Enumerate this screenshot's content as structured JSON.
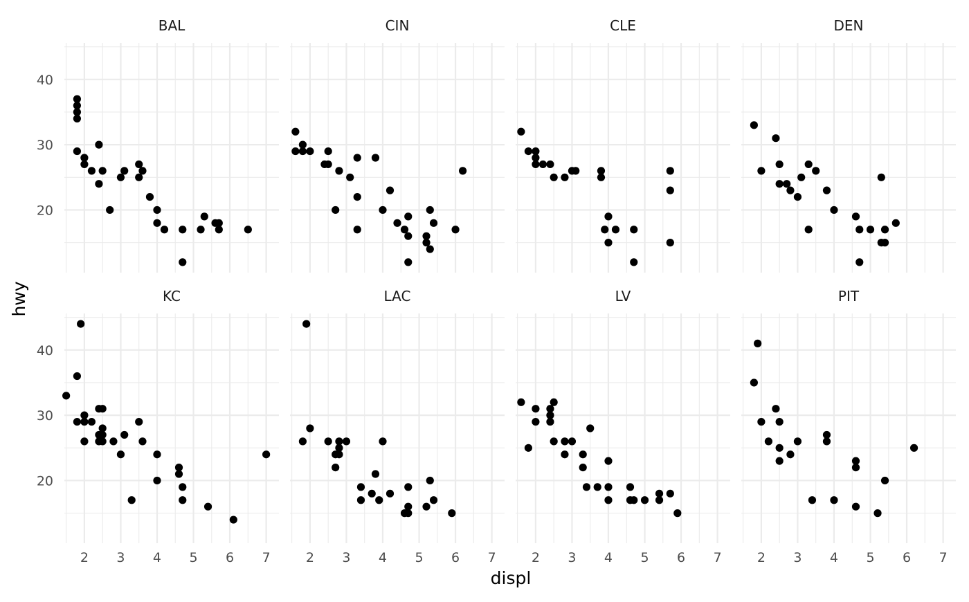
{
  "chart_data": {
    "type": "scatter",
    "xlabel": "displ",
    "ylabel": "hwy",
    "xlim": [
      1.45,
      7.35
    ],
    "ylim": [
      10.4,
      45.6
    ],
    "x_ticks": [
      2,
      3,
      4,
      5,
      6,
      7
    ],
    "y_ticks": [
      20,
      30,
      40
    ],
    "grid": true,
    "facet_rows": 2,
    "facet_cols": 4,
    "point_color": "#000000",
    "grid_color": "#ebebeb",
    "panels": [
      {
        "name": "BAL",
        "points": [
          [
            1.8,
            37
          ],
          [
            1.8,
            36
          ],
          [
            1.8,
            35
          ],
          [
            1.8,
            34
          ],
          [
            1.8,
            29
          ],
          [
            2.0,
            28
          ],
          [
            2.0,
            27
          ],
          [
            2.2,
            26
          ],
          [
            2.4,
            30
          ],
          [
            2.4,
            24
          ],
          [
            2.5,
            26
          ],
          [
            2.7,
            20
          ],
          [
            3.0,
            25
          ],
          [
            3.1,
            26
          ],
          [
            3.5,
            27
          ],
          [
            3.5,
            25
          ],
          [
            3.6,
            26
          ],
          [
            3.8,
            22
          ],
          [
            4.0,
            20
          ],
          [
            4.0,
            18
          ],
          [
            4.2,
            17
          ],
          [
            4.7,
            17
          ],
          [
            4.7,
            12
          ],
          [
            5.2,
            17
          ],
          [
            5.3,
            19
          ],
          [
            5.6,
            18
          ],
          [
            5.7,
            18
          ],
          [
            5.7,
            17
          ],
          [
            6.5,
            17
          ]
        ]
      },
      {
        "name": "CIN",
        "points": [
          [
            1.6,
            32
          ],
          [
            1.6,
            29
          ],
          [
            1.8,
            30
          ],
          [
            1.8,
            29
          ],
          [
            2.0,
            29
          ],
          [
            2.4,
            27
          ],
          [
            2.5,
            29
          ],
          [
            2.5,
            27
          ],
          [
            2.8,
            26
          ],
          [
            2.7,
            20
          ],
          [
            3.1,
            25
          ],
          [
            3.3,
            28
          ],
          [
            3.3,
            22
          ],
          [
            3.3,
            17
          ],
          [
            3.8,
            28
          ],
          [
            4.0,
            20
          ],
          [
            4.2,
            23
          ],
          [
            4.4,
            18
          ],
          [
            4.6,
            17
          ],
          [
            4.7,
            19
          ],
          [
            4.7,
            16
          ],
          [
            4.7,
            12
          ],
          [
            5.2,
            16
          ],
          [
            5.2,
            15
          ],
          [
            5.3,
            20
          ],
          [
            5.3,
            14
          ],
          [
            5.4,
            18
          ],
          [
            6.0,
            17
          ],
          [
            6.2,
            26
          ]
        ]
      },
      {
        "name": "CLE",
        "points": [
          [
            1.6,
            32
          ],
          [
            1.8,
            29
          ],
          [
            2.0,
            29
          ],
          [
            2.0,
            28
          ],
          [
            2.0,
            27
          ],
          [
            2.2,
            27
          ],
          [
            2.4,
            27
          ],
          [
            2.5,
            25
          ],
          [
            2.8,
            25
          ],
          [
            3.0,
            26
          ],
          [
            3.1,
            26
          ],
          [
            3.8,
            26
          ],
          [
            3.8,
            25
          ],
          [
            3.9,
            17
          ],
          [
            4.0,
            19
          ],
          [
            4.0,
            15
          ],
          [
            4.2,
            17
          ],
          [
            4.7,
            17
          ],
          [
            4.7,
            12
          ],
          [
            5.7,
            26
          ],
          [
            5.7,
            23
          ],
          [
            5.7,
            15
          ]
        ]
      },
      {
        "name": "DEN",
        "points": [
          [
            1.8,
            33
          ],
          [
            2.0,
            26
          ],
          [
            2.4,
            31
          ],
          [
            2.5,
            27
          ],
          [
            2.5,
            24
          ],
          [
            2.7,
            24
          ],
          [
            2.8,
            23
          ],
          [
            3.0,
            22
          ],
          [
            3.1,
            25
          ],
          [
            3.3,
            27
          ],
          [
            3.3,
            17
          ],
          [
            3.5,
            26
          ],
          [
            3.8,
            23
          ],
          [
            4.0,
            20
          ],
          [
            4.6,
            19
          ],
          [
            4.7,
            17
          ],
          [
            4.7,
            12
          ],
          [
            5.0,
            17
          ],
          [
            5.3,
            25
          ],
          [
            5.3,
            15
          ],
          [
            5.4,
            17
          ],
          [
            5.4,
            15
          ],
          [
            5.7,
            18
          ]
        ]
      },
      {
        "name": "KC",
        "points": [
          [
            1.5,
            33
          ],
          [
            1.8,
            36
          ],
          [
            1.8,
            29
          ],
          [
            1.9,
            44
          ],
          [
            2.0,
            30
          ],
          [
            2.0,
            29
          ],
          [
            2.0,
            26
          ],
          [
            2.2,
            29
          ],
          [
            2.4,
            31
          ],
          [
            2.4,
            27
          ],
          [
            2.4,
            26
          ],
          [
            2.5,
            31
          ],
          [
            2.5,
            28
          ],
          [
            2.5,
            27
          ],
          [
            2.5,
            26
          ],
          [
            2.8,
            26
          ],
          [
            3.0,
            24
          ],
          [
            3.1,
            27
          ],
          [
            3.3,
            17
          ],
          [
            3.5,
            29
          ],
          [
            3.6,
            26
          ],
          [
            4.0,
            24
          ],
          [
            4.0,
            20
          ],
          [
            4.6,
            22
          ],
          [
            4.6,
            21
          ],
          [
            4.7,
            19
          ],
          [
            4.7,
            17
          ],
          [
            5.4,
            16
          ],
          [
            6.1,
            14
          ],
          [
            7.0,
            24
          ]
        ]
      },
      {
        "name": "LAC",
        "points": [
          [
            1.8,
            26
          ],
          [
            1.9,
            44
          ],
          [
            2.0,
            28
          ],
          [
            2.5,
            26
          ],
          [
            2.7,
            24
          ],
          [
            2.7,
            22
          ],
          [
            2.8,
            26
          ],
          [
            2.8,
            25
          ],
          [
            2.8,
            24
          ],
          [
            3.0,
            26
          ],
          [
            3.4,
            19
          ],
          [
            3.4,
            17
          ],
          [
            3.7,
            18
          ],
          [
            3.8,
            21
          ],
          [
            3.9,
            17
          ],
          [
            4.0,
            26
          ],
          [
            4.2,
            18
          ],
          [
            4.6,
            15
          ],
          [
            4.7,
            19
          ],
          [
            4.7,
            16
          ],
          [
            4.7,
            15
          ],
          [
            5.2,
            16
          ],
          [
            5.3,
            20
          ],
          [
            5.4,
            17
          ],
          [
            5.9,
            15
          ]
        ]
      },
      {
        "name": "LV",
        "points": [
          [
            1.6,
            32
          ],
          [
            1.8,
            25
          ],
          [
            2.0,
            31
          ],
          [
            2.0,
            29
          ],
          [
            2.4,
            31
          ],
          [
            2.4,
            30
          ],
          [
            2.4,
            29
          ],
          [
            2.5,
            32
          ],
          [
            2.5,
            26
          ],
          [
            2.8,
            26
          ],
          [
            2.8,
            24
          ],
          [
            3.0,
            26
          ],
          [
            3.3,
            24
          ],
          [
            3.3,
            22
          ],
          [
            3.4,
            19
          ],
          [
            3.5,
            28
          ],
          [
            3.7,
            19
          ],
          [
            4.0,
            23
          ],
          [
            4.0,
            19
          ],
          [
            4.0,
            17
          ],
          [
            4.6,
            19
          ],
          [
            4.6,
            17
          ],
          [
            4.7,
            17
          ],
          [
            5.0,
            17
          ],
          [
            5.4,
            18
          ],
          [
            5.4,
            17
          ],
          [
            5.7,
            18
          ],
          [
            5.9,
            15
          ]
        ]
      },
      {
        "name": "PIT",
        "points": [
          [
            1.8,
            35
          ],
          [
            1.9,
            41
          ],
          [
            2.0,
            29
          ],
          [
            2.2,
            26
          ],
          [
            2.4,
            31
          ],
          [
            2.5,
            29
          ],
          [
            2.5,
            25
          ],
          [
            2.5,
            23
          ],
          [
            2.8,
            24
          ],
          [
            3.0,
            26
          ],
          [
            3.4,
            17
          ],
          [
            3.8,
            27
          ],
          [
            3.8,
            26
          ],
          [
            4.0,
            17
          ],
          [
            4.6,
            23
          ],
          [
            4.6,
            22
          ],
          [
            4.6,
            16
          ],
          [
            5.2,
            15
          ],
          [
            5.4,
            20
          ],
          [
            6.2,
            25
          ]
        ]
      }
    ]
  }
}
